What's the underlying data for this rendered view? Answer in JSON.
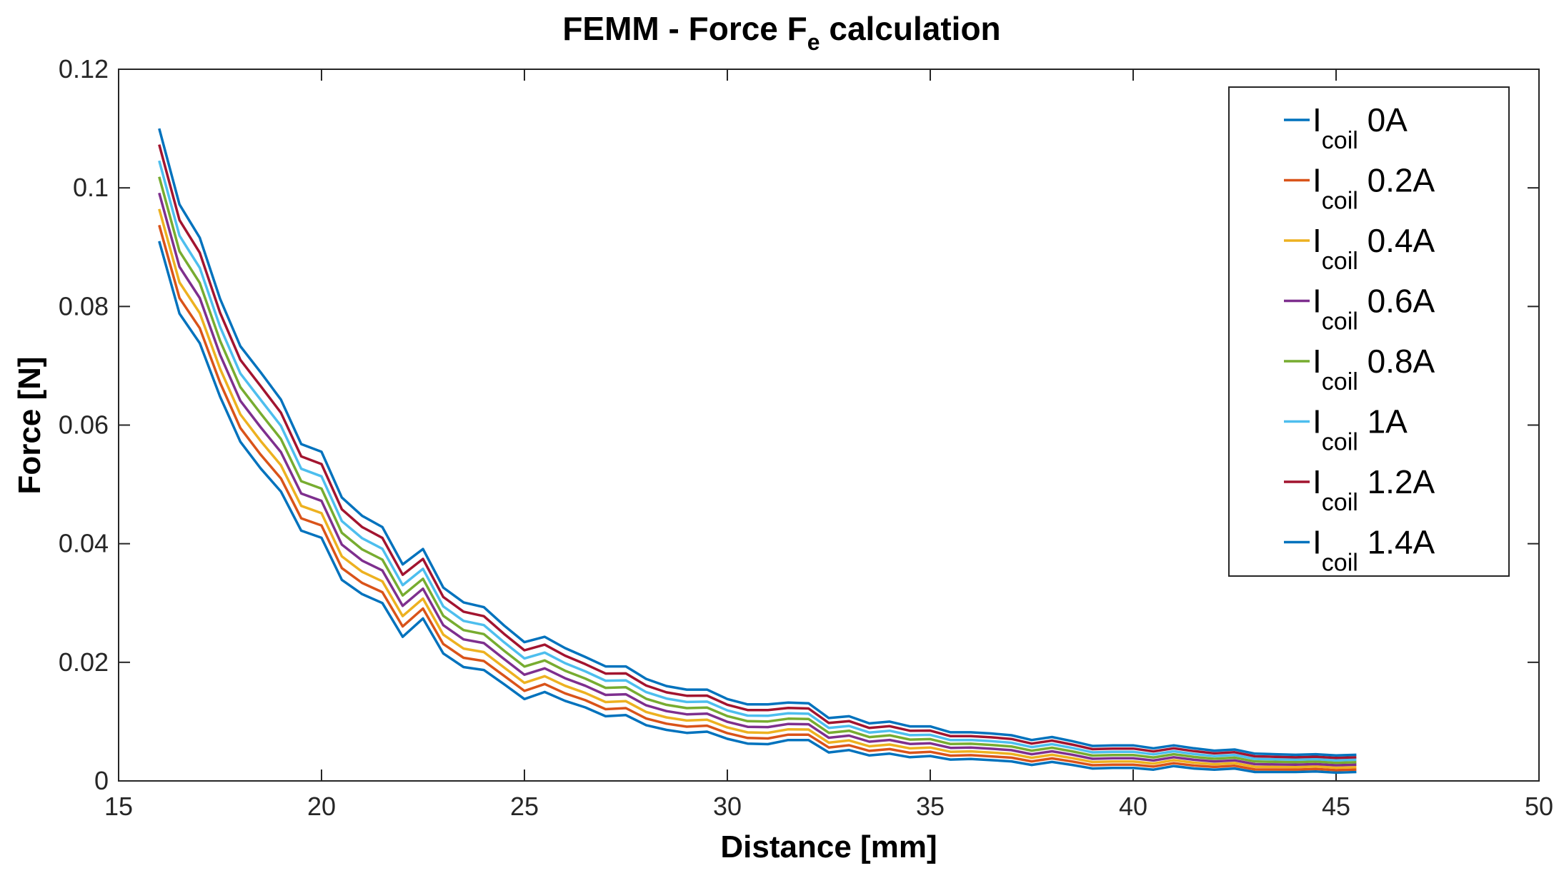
{
  "chart_data": {
    "type": "line",
    "title": {
      "main": "FEMM - Force F",
      "sub": "e",
      "tail": " calculation"
    },
    "xlabel": "Distance [mm]",
    "ylabel": "Force [N]",
    "xlim": [
      15,
      50
    ],
    "ylim": [
      0,
      0.12
    ],
    "xticks": [
      15,
      20,
      25,
      30,
      35,
      40,
      45,
      50
    ],
    "xtick_labels": [
      "15",
      "20",
      "25",
      "30",
      "35",
      "40",
      "45",
      "50"
    ],
    "yticks": [
      0,
      0.02,
      0.04,
      0.06,
      0.08,
      0.1,
      0.12
    ],
    "ytick_labels": [
      "0",
      "0.02",
      "0.04",
      "0.06",
      "0.08",
      "0.1",
      "0.12"
    ],
    "grid": false,
    "legend": "top-right",
    "x": [
      16,
      16.5,
      17,
      17.5,
      18,
      18.5,
      19,
      19.5,
      20,
      20.5,
      21,
      21.5,
      22,
      22.5,
      23,
      23.5,
      24,
      24.5,
      25,
      25.5,
      26,
      26.5,
      27,
      27.5,
      28,
      28.5,
      29,
      29.5,
      30,
      30.5,
      31,
      31.5,
      32,
      32.5,
      33,
      33.5,
      34,
      34.5,
      35,
      35.5,
      36,
      36.5,
      37,
      37.5,
      38,
      38.5,
      39,
      39.5,
      40,
      40.5,
      41,
      41.5,
      42,
      42.5,
      43,
      43.5,
      44,
      44.5,
      45,
      45.5
    ],
    "base": [
      0.091,
      0.0788,
      0.0738,
      0.0648,
      0.0572,
      0.0527,
      0.0488,
      0.0422,
      0.041,
      0.0339,
      0.0315,
      0.03,
      0.0243,
      0.0274,
      0.0215,
      0.0192,
      0.0187,
      0.0163,
      0.0138,
      0.015,
      0.0135,
      0.0124,
      0.0109,
      0.0111,
      0.0094,
      0.0086,
      0.0081,
      0.0083,
      0.0071,
      0.0063,
      0.0062,
      0.0069,
      0.0069,
      0.0048,
      0.0052,
      0.0043,
      0.0046,
      0.004,
      0.0042,
      0.0036,
      0.0037,
      0.0035,
      0.0033,
      0.0027,
      0.0032,
      0.0027,
      0.0021,
      0.0022,
      0.0022,
      0.0019,
      0.0025,
      0.0021,
      0.0019,
      0.0021,
      0.0015,
      0.0015,
      0.0015,
      0.0016,
      0.0014,
      0.0015
    ],
    "top": [
      0.11,
      0.0972,
      0.0916,
      0.0813,
      0.0733,
      0.0689,
      0.0643,
      0.0568,
      0.0555,
      0.0478,
      0.0447,
      0.0428,
      0.0365,
      0.0391,
      0.0326,
      0.0301,
      0.0293,
      0.0262,
      0.0234,
      0.0243,
      0.0224,
      0.0209,
      0.0193,
      0.0193,
      0.0172,
      0.016,
      0.0154,
      0.0154,
      0.0138,
      0.0129,
      0.0129,
      0.0132,
      0.0131,
      0.0106,
      0.0109,
      0.0097,
      0.01,
      0.0092,
      0.0092,
      0.0082,
      0.0082,
      0.008,
      0.0077,
      0.0069,
      0.0074,
      0.0067,
      0.0059,
      0.006,
      0.006,
      0.0055,
      0.006,
      0.0055,
      0.0051,
      0.0053,
      0.0046,
      0.0045,
      0.0044,
      0.0045,
      0.0043,
      0.0044
    ],
    "series": [
      {
        "name": "0A",
        "fraction": 0
      },
      {
        "name": "0.2A",
        "fraction": 0.1429
      },
      {
        "name": "0.4A",
        "fraction": 0.2857
      },
      {
        "name": "0.6A",
        "fraction": 0.4286
      },
      {
        "name": "0.8A",
        "fraction": 0.5714
      },
      {
        "name": "1A",
        "fraction": 0.7143
      },
      {
        "name": "1.2A",
        "fraction": 0.8571
      },
      {
        "name": "1.4A",
        "fraction": 1
      }
    ],
    "legend_prefix": {
      "main": "I",
      "sub": "coil"
    },
    "colors": [
      "#0072BD",
      "#D95319",
      "#EDB120",
      "#7E2F8E",
      "#77AC30",
      "#4DBEEE",
      "#A2142F",
      "#0072BD"
    ]
  }
}
